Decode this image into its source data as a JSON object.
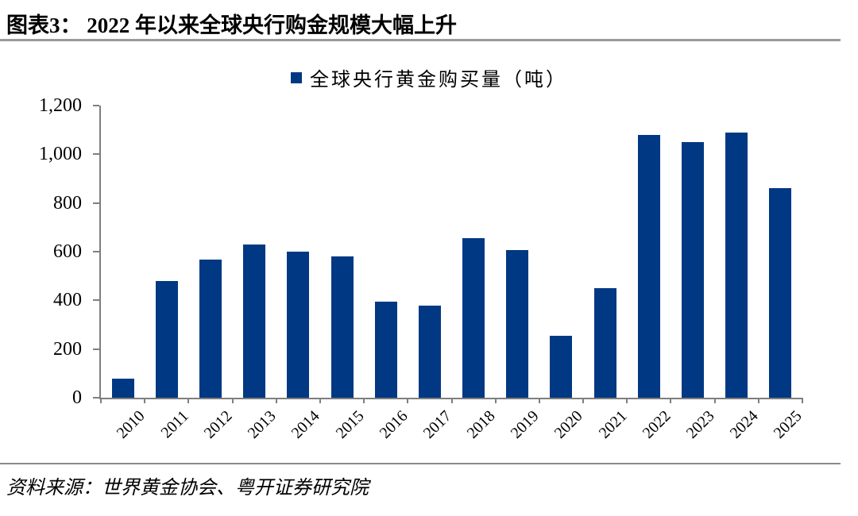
{
  "header": {
    "title": "图表3： 2022 年以来全球央行购金规模大幅上升"
  },
  "chart_data": {
    "type": "bar",
    "title": "图表3： 2022 年以来全球央行购金规模大幅上升",
    "legend": "全球央行黄金购买量（吨）",
    "legend_position": "top-center",
    "categories": [
      "2010",
      "2011",
      "2012",
      "2013",
      "2014",
      "2015",
      "2016",
      "2017",
      "2018",
      "2019",
      "2020",
      "2021",
      "2022",
      "2023",
      "2024",
      "2025"
    ],
    "values": [
      79,
      481,
      569,
      630,
      601,
      580,
      395,
      379,
      656,
      605,
      255,
      450,
      1080,
      1051,
      1090,
      862
    ],
    "xlabel": "",
    "ylabel": "",
    "ylim": [
      0,
      1200
    ],
    "ytick_values": [
      0,
      200,
      400,
      600,
      800,
      1000,
      1200
    ],
    "ytick_labels": [
      "0",
      "200",
      "400",
      "600",
      "800",
      "1,000",
      "1,200"
    ],
    "grid": false,
    "bar_color": "#003883",
    "axis_color": "#7f7f7f"
  },
  "footer": {
    "source": "资料来源：世界黄金协会、粤开证券研究院"
  }
}
